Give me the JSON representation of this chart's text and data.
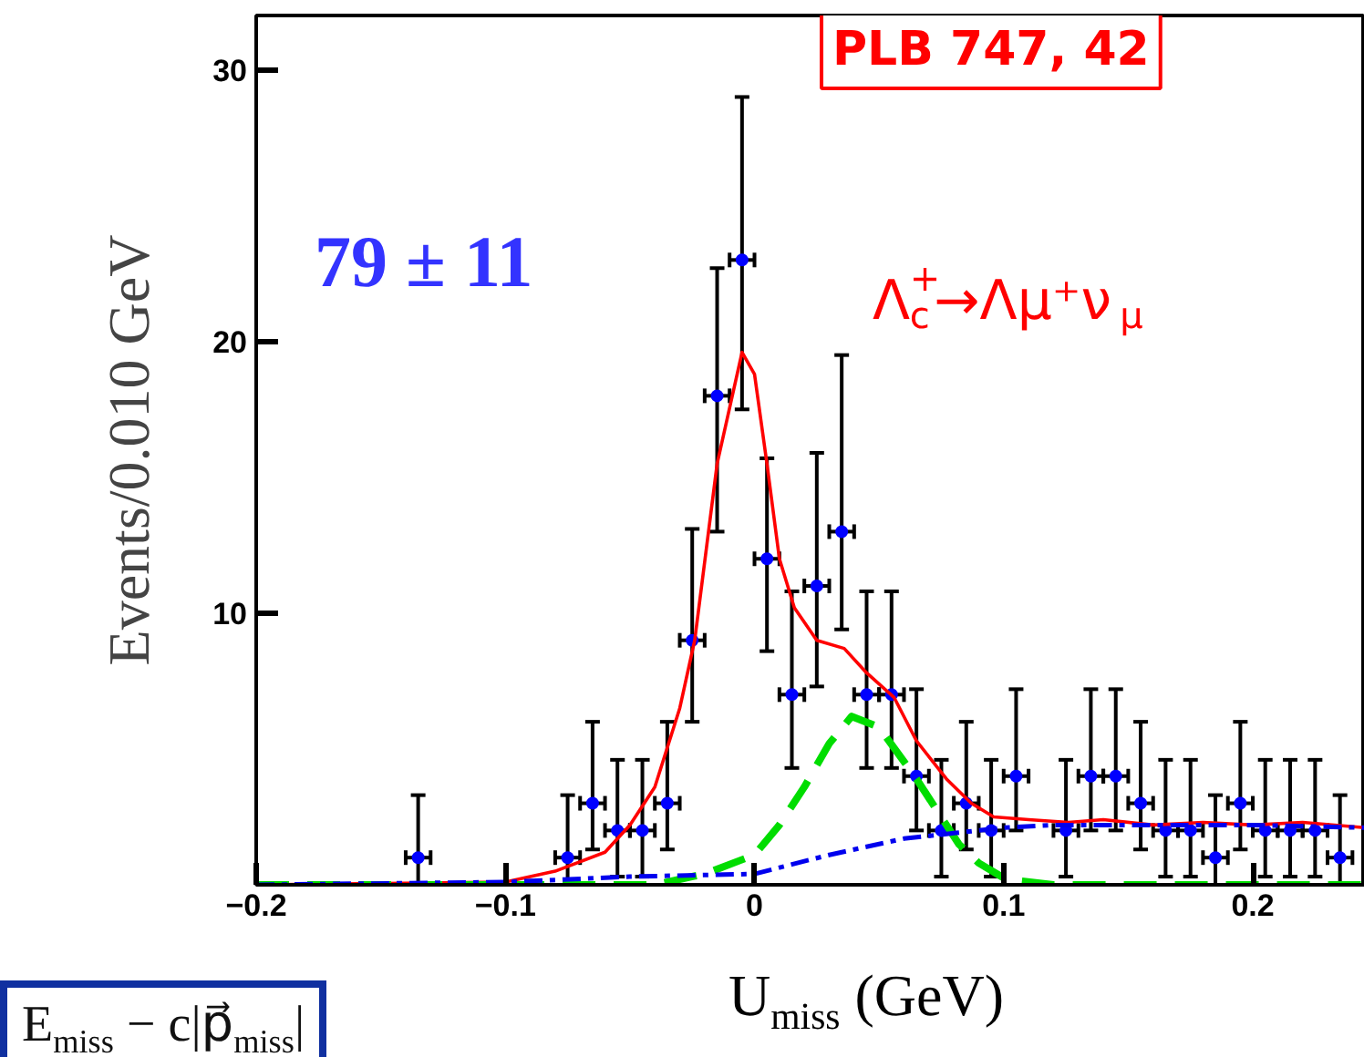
{
  "chart_data": {
    "type": "scatter",
    "xlabel": "U$_{miss}$ (GeV)",
    "ylabel": "Events/0.010 GeV",
    "xlim": [
      -0.2,
      0.245
    ],
    "ylim": [
      0,
      32
    ],
    "xticks": [
      -0.2,
      -0.1,
      {
        "value": 0,
        "label": "0"
      },
      0.1,
      0.2
    ],
    "yticks": [
      10,
      20,
      30
    ],
    "grid": false,
    "annotations": [
      "79 ± 11",
      "Λ$_{c}$$^{+}$→Λμ⁺ν$_{μ}$",
      "PLB 747, 42",
      "E$_{miss}$ − c|p⃗$_{miss}$|"
    ],
    "series": [
      {
        "marker": "circle",
        "color": "#0000ff",
        "x": [
          -0.135,
          -0.075,
          -0.065,
          -0.055,
          -0.045,
          -0.035,
          -0.025,
          -0.015,
          -0.005,
          0.005,
          0.015,
          0.025,
          0.035,
          0.045,
          0.055,
          0.065,
          0.075,
          0.085,
          0.095,
          0.105,
          0.125,
          0.135,
          0.145,
          0.155,
          0.165,
          0.175,
          0.185,
          0.195,
          0.205,
          0.215,
          0.225,
          0.235
        ],
        "values": [
          1,
          1,
          3,
          2,
          2,
          3,
          9,
          18,
          23,
          12,
          7,
          11,
          13,
          7,
          7,
          4,
          2,
          3,
          2,
          4,
          2,
          4,
          4,
          3,
          2,
          2,
          1,
          3,
          2,
          2,
          2,
          1
        ],
        "errors": [
          [
            0,
            3.3
          ],
          [
            0,
            3.3
          ],
          [
            1.3,
            6.0
          ],
          [
            0.3,
            4.6
          ],
          [
            0.3,
            4.6
          ],
          [
            1.3,
            6.0
          ],
          [
            6.0,
            13.1
          ],
          [
            13.0,
            22.7
          ],
          [
            17.5,
            29.0
          ],
          [
            8.6,
            15.7
          ],
          [
            4.3,
            10.8
          ],
          [
            7.3,
            15.9
          ],
          [
            9.4,
            19.5
          ],
          [
            4.3,
            10.8
          ],
          [
            4.3,
            10.8
          ],
          [
            2.0,
            7.2
          ],
          [
            0.3,
            4.6
          ],
          [
            1.3,
            6.0
          ],
          [
            0.3,
            4.6
          ],
          [
            2.0,
            7.2
          ],
          [
            0.3,
            4.6
          ],
          [
            2.0,
            7.2
          ],
          [
            2.0,
            7.2
          ],
          [
            1.3,
            6.0
          ],
          [
            0.3,
            4.6
          ],
          [
            0.3,
            4.6
          ],
          [
            0,
            3.3
          ],
          [
            1.3,
            6.0
          ],
          [
            0.3,
            4.6
          ],
          [
            0.3,
            4.6
          ],
          [
            0.3,
            4.6
          ],
          [
            0,
            3.3
          ]
        ],
        "xerrors": [
          0.005,
          0.005,
          0.005,
          0.005,
          0.005,
          0.005,
          0.005,
          0.005,
          0.005,
          0.005,
          0.005,
          0.005,
          0.005,
          0.005,
          0.005,
          0.005,
          0.005,
          0.005,
          0.005,
          0.005,
          0.005,
          0.005,
          0.005,
          0.005,
          0.005,
          0.005,
          0.005,
          0.005,
          0.005,
          0.005,
          0.005,
          0.005
        ]
      },
      {
        "type": "line",
        "color": "#ff0000",
        "line_style": "solid",
        "x": [
          -0.2,
          -0.1,
          -0.08,
          -0.06,
          -0.05,
          -0.04,
          -0.03,
          -0.024,
          -0.015,
          -0.005,
          0.0,
          0.005,
          0.01,
          0.016,
          0.025,
          0.036,
          0.045,
          0.056,
          0.065,
          0.077,
          0.087,
          0.096,
          0.11,
          0.126,
          0.14,
          0.16,
          0.18,
          0.2,
          0.22,
          0.245
        ],
        "values": [
          0,
          0.1,
          0.5,
          1.2,
          2.2,
          3.6,
          6.5,
          9.0,
          15.5,
          19.6,
          18.8,
          15.5,
          12.0,
          10.2,
          9.0,
          8.7,
          7.8,
          6.9,
          5.3,
          3.9,
          3.0,
          2.5,
          2.4,
          2.3,
          2.4,
          2.2,
          2.3,
          2.2,
          2.3,
          2.1
        ]
      },
      {
        "type": "line",
        "color": "#00dd00",
        "line_style": "dashed",
        "x": [
          -0.2,
          -0.04,
          -0.02,
          0.0,
          0.01,
          0.02,
          0.03,
          0.039,
          0.05,
          0.065,
          0.082,
          0.09,
          0.101,
          0.12,
          0.245
        ],
        "values": [
          0,
          0,
          0.4,
          1.1,
          2.2,
          3.6,
          5.2,
          6.2,
          5.8,
          3.9,
          1.5,
          0.8,
          0.2,
          0,
          0
        ]
      },
      {
        "type": "line",
        "color": "#0000ee",
        "line_style": "dashdot",
        "x": [
          -0.2,
          -0.1,
          -0.05,
          0.0,
          0.03,
          0.06,
          0.08,
          0.1,
          0.12,
          0.14,
          0.2,
          0.245
        ],
        "values": [
          0,
          0.1,
          0.3,
          0.4,
          1.1,
          1.7,
          1.9,
          2.1,
          2.2,
          2.2,
          2.2,
          2.1
        ]
      }
    ]
  }
}
